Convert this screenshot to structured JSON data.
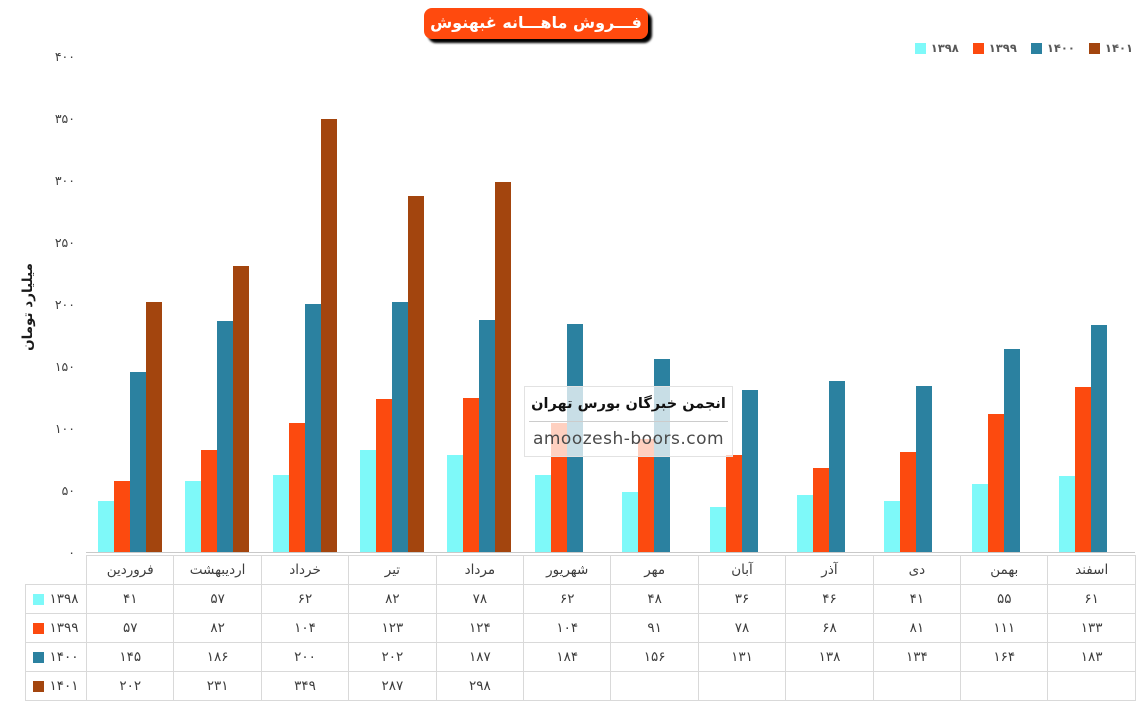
{
  "title_banner": "فـــروش ماهـــانه غبهنوش",
  "watermark": {
    "line1": "انجمن خبرگان بورس تهران",
    "line2": "amoozesh-boors.com"
  },
  "colors": {
    "banner_bg": "#ff4a0e",
    "banner_shadow": "#000000",
    "legend_text": "#595959",
    "table_border": "#d9d9d9",
    "axis_line": "#c9c9c9"
  },
  "chart_data": {
    "type": "bar",
    "title": "فـــروش ماهـــانه غبهنوش",
    "xlabel": "",
    "ylabel": "میلیارد تومان",
    "ylim": [
      0,
      400
    ],
    "ytick_step": 50,
    "grid": false,
    "legend_position": "top-right",
    "digit_style": "persian",
    "categories": [
      "فروردین",
      "اردیبهشت",
      "خرداد",
      "تیر",
      "مرداد",
      "شهریور",
      "مهر",
      "آبان",
      "آذر",
      "دی",
      "بهمن",
      "اسفند"
    ],
    "series": [
      {
        "name": "۱۳۹۸",
        "color": "#7ef9f9",
        "values": [
          41,
          57,
          62,
          82,
          78,
          62,
          48,
          36,
          46,
          41,
          55,
          61
        ]
      },
      {
        "name": "۱۳۹۹",
        "color": "#fc4a0f",
        "values": [
          57,
          82,
          104,
          123,
          124,
          104,
          91,
          78,
          68,
          81,
          111,
          133
        ]
      },
      {
        "name": "۱۴۰۰",
        "color": "#2b81a0",
        "values": [
          145,
          186,
          200,
          202,
          187,
          184,
          156,
          131,
          138,
          134,
          164,
          183
        ]
      },
      {
        "name": "۱۴۰۱",
        "color": "#a3450e",
        "values": [
          202,
          231,
          349,
          287,
          298,
          null,
          null,
          null,
          null,
          null,
          null,
          null
        ]
      }
    ]
  }
}
